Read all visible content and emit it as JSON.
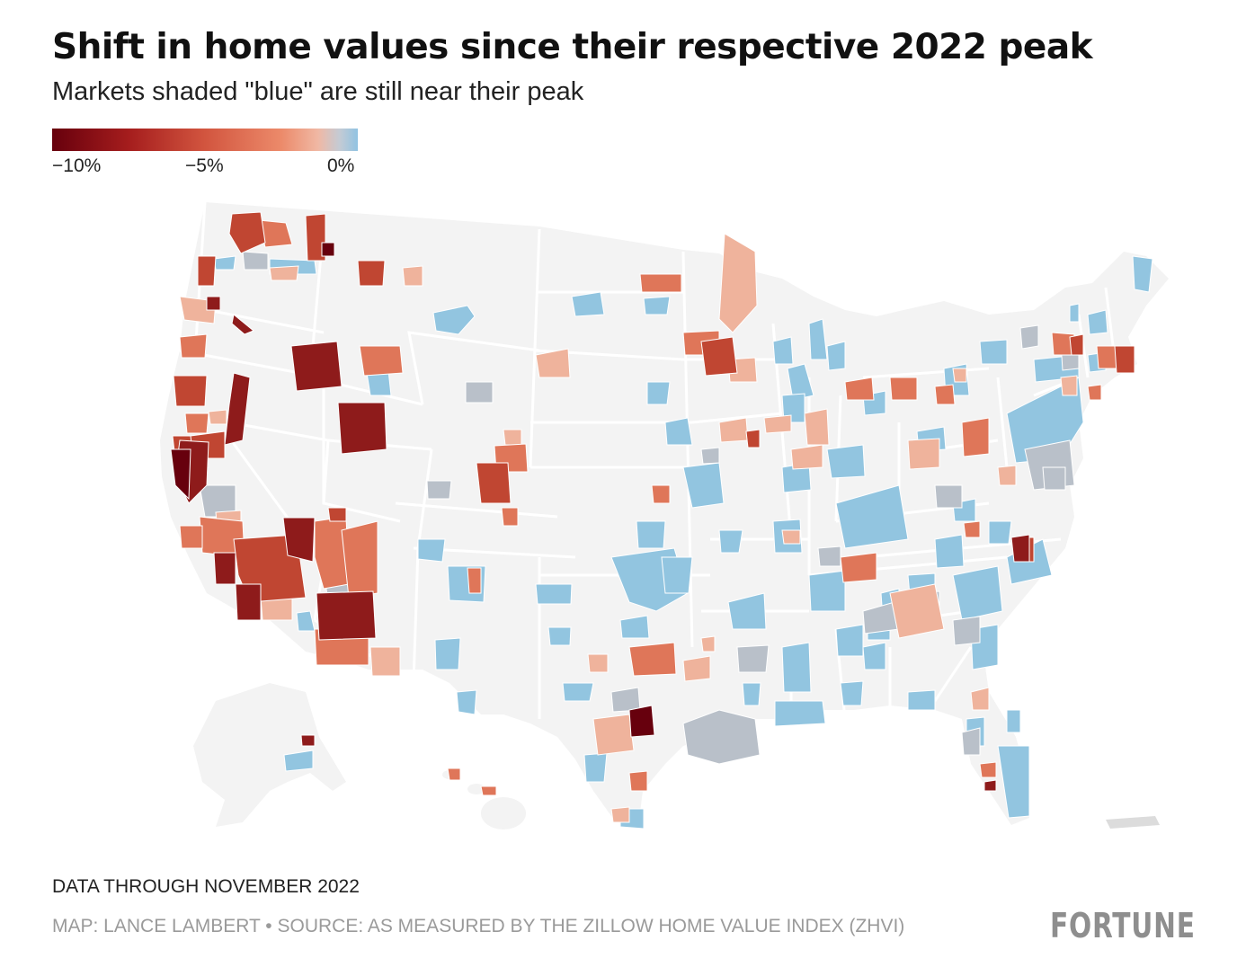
{
  "header": {
    "title": "Shift in home values since their respective 2022 peak",
    "subtitle": "Markets shaded \"blue\" are still near their peak"
  },
  "legend": {
    "ticks": [
      "−10%",
      "−5%",
      "0%"
    ],
    "scale_colors": [
      "#67000d",
      "#a51d1d",
      "#d2553f",
      "#ec8a6a",
      "#f0b8a4",
      "#c4cbd4",
      "#91c3e2"
    ]
  },
  "footer": {
    "data_note": "DATA THROUGH NOVEMBER 2022",
    "credit": "MAP: LANCE LAMBERT • SOURCE: AS MEASURED BY THE ZILLOW HOME VALUE INDEX (ZHVI)",
    "brand": "FORTUNE"
  },
  "colors": {
    "land": "#f3f3f3",
    "state_border": "#ffffff",
    "near_peak_blue": "#92c5e0",
    "neutral_gray": "#b9c0c9",
    "slight_decline": "#efb39c",
    "moderate_decline": "#df7659",
    "large_decline": "#c04632",
    "severe_decline": "#8e1b1b",
    "extreme_decline": "#67000d"
  }
}
